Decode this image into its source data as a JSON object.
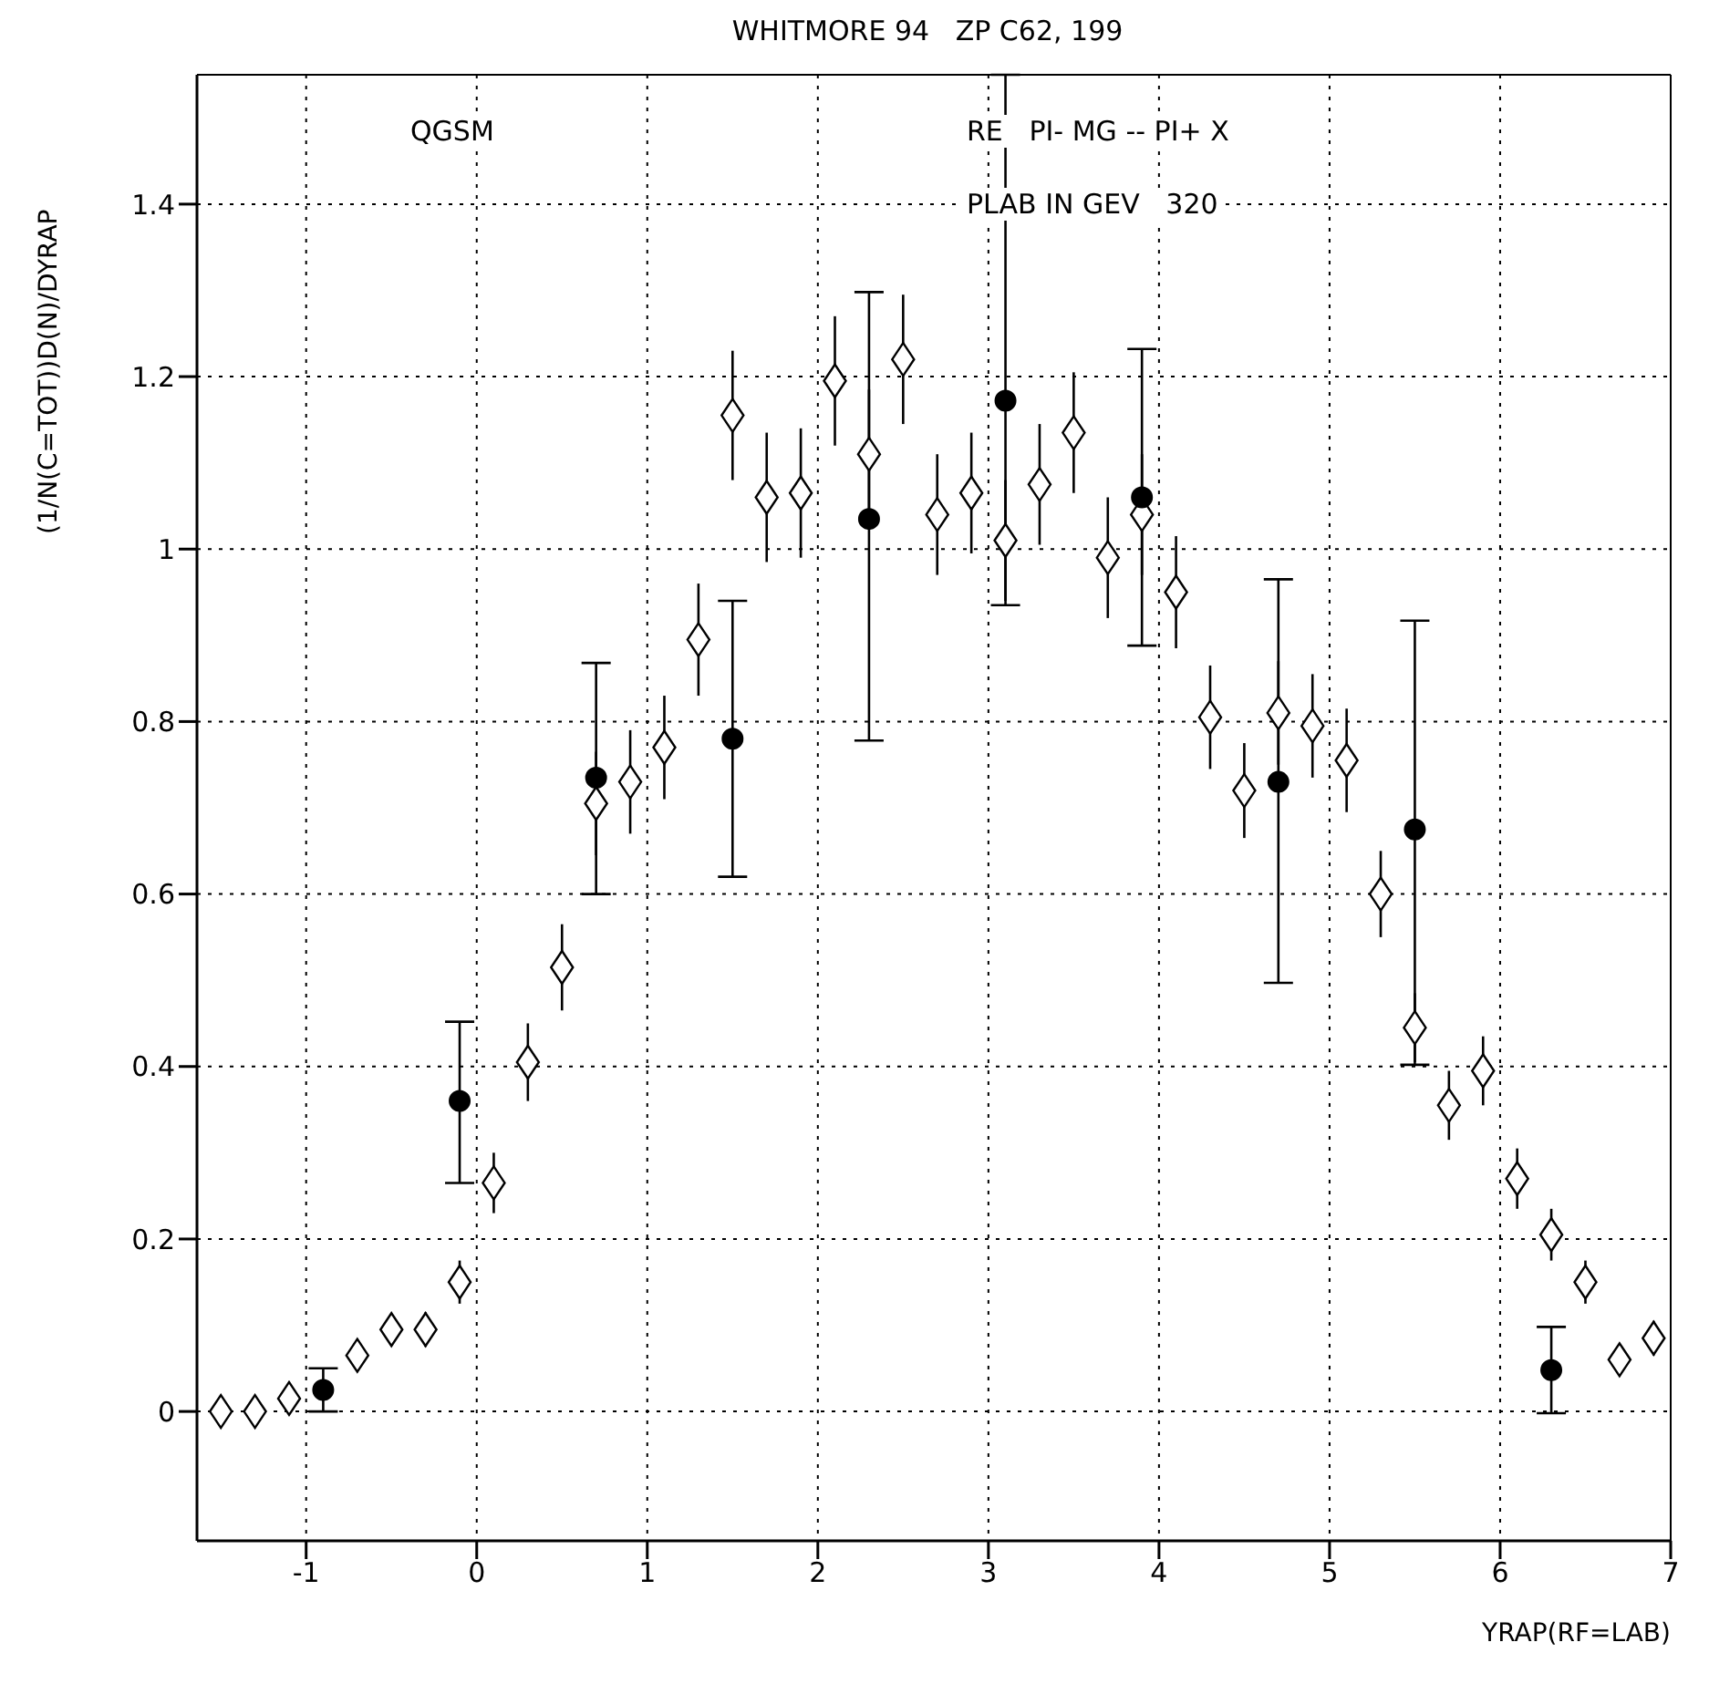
{
  "chart_data": {
    "type": "scatter",
    "title": "WHITMORE 94   ZP C62, 199",
    "xlabel": "YRAP(RF=LAB)",
    "ylabel": "(1/N(C=TOT))D(N)/DYRAP",
    "annotations": [
      "QGSM",
      "RE   PI- MG -- PI+ X",
      "PLAB IN GEV   320"
    ],
    "xlim": [
      -1.64,
      7.0
    ],
    "xticks": [
      -1,
      0,
      1,
      2,
      3,
      4,
      5,
      6,
      7
    ],
    "ylim": [
      -0.15,
      1.55
    ],
    "yticks": [
      0,
      0.2,
      0.4,
      0.6,
      0.8,
      1,
      1.2,
      1.4
    ],
    "grid": true,
    "series": [
      {
        "marker": "diamond",
        "color": "#000000",
        "x": [
          -1.5,
          -1.3,
          -1.1,
          -0.9,
          -0.7,
          -0.5,
          -0.3,
          -0.1,
          0.1,
          0.3,
          0.5,
          0.7,
          0.9,
          1.1,
          1.3,
          1.5,
          1.7,
          1.9,
          2.1,
          2.3,
          2.5,
          2.7,
          2.9,
          3.1,
          3.3,
          3.5,
          3.7,
          3.9,
          4.1,
          4.3,
          4.5,
          4.7,
          4.9,
          5.1,
          5.3,
          5.5,
          5.7,
          5.9,
          6.1,
          6.3,
          6.5,
          6.7,
          6.9
        ],
        "values": [
          0.0,
          0.0,
          0.015,
          null,
          0.065,
          0.095,
          0.095,
          0.15,
          0.265,
          0.405,
          0.515,
          0.705,
          0.73,
          0.77,
          0.895,
          1.155,
          1.06,
          1.065,
          1.195,
          1.11,
          1.22,
          1.04,
          1.065,
          1.01,
          1.075,
          1.135,
          0.99,
          1.04,
          0.95,
          0.805,
          0.72,
          0.81,
          0.795,
          0.755,
          0.6,
          0.445,
          0.355,
          0.395,
          0.27,
          0.205,
          0.15,
          0.06,
          0.085
        ],
        "errors": [
          null,
          null,
          null,
          null,
          0.01,
          0.015,
          0.02,
          0.025,
          0.035,
          0.045,
          0.05,
          0.06,
          0.06,
          0.06,
          0.065,
          0.075,
          0.075,
          0.075,
          0.075,
          0.075,
          0.075,
          0.07,
          0.07,
          0.07,
          0.07,
          0.07,
          0.07,
          0.07,
          0.065,
          0.06,
          0.055,
          0.06,
          0.06,
          0.06,
          0.05,
          0.04,
          0.04,
          0.04,
          0.035,
          0.03,
          0.025,
          null,
          0.02
        ]
      },
      {
        "marker": "circle",
        "color": "#000000",
        "x": [
          -0.9,
          -0.1,
          0.7,
          1.5,
          2.3,
          3.1,
          3.9,
          4.7,
          5.5,
          6.3
        ],
        "values": [
          0.025,
          0.36,
          0.735,
          0.78,
          1.035,
          1.172,
          1.06,
          0.73,
          0.675,
          0.048
        ],
        "errors": [
          [
            0.0,
            0.05
          ],
          [
            0.265,
            0.452
          ],
          [
            0.6,
            0.868
          ],
          [
            0.62,
            0.94
          ],
          [
            0.778,
            1.298
          ],
          [
            0.935,
            1.55
          ],
          [
            0.888,
            1.232
          ],
          [
            0.497,
            0.965
          ],
          [
            0.402,
            0.917
          ],
          [
            -0.002,
            0.098
          ]
        ]
      }
    ]
  }
}
